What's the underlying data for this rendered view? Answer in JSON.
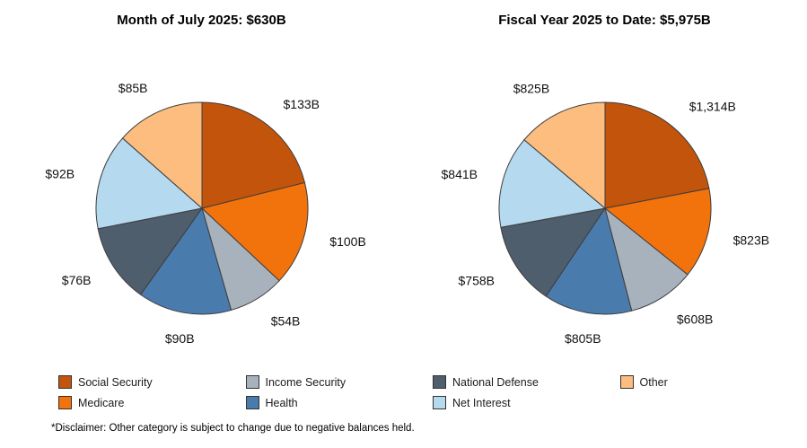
{
  "style": {
    "background": "#ffffff",
    "slice_stroke": "#3d3d3d"
  },
  "palette": {
    "social_security": "#c2540c",
    "medicare": "#f2720c",
    "income_security": "#a8b2bd",
    "health": "#4a7bad",
    "national_defense": "#4f5e6d",
    "net_interest": "#b5d9ee",
    "other": "#fcbd7f"
  },
  "chart_data": [
    {
      "type": "pie",
      "title": "Month of July 2025: $630B",
      "total_label": "$630B",
      "categories": [
        "Social Security",
        "Medicare",
        "Income Security",
        "Health",
        "National Defense",
        "Net Interest",
        "Other"
      ],
      "values": [
        133,
        100,
        54,
        90,
        76,
        92,
        85
      ],
      "labels": [
        "$133B",
        "$100B",
        "$54B",
        "$90B",
        "$76B",
        "$92B",
        "$85B"
      ],
      "colors": [
        "#c2540c",
        "#f2720c",
        "#a8b2bd",
        "#4a7bad",
        "#4f5e6d",
        "#b5d9ee",
        "#fcbd7f"
      ],
      "start_angle_deg": 0,
      "direction": "clockwise",
      "legend_position": "bottom"
    },
    {
      "type": "pie",
      "title": "Fiscal Year 2025 to Date: $5,975B",
      "total_label": "$5,975B",
      "categories": [
        "Social Security",
        "Medicare",
        "Income Security",
        "Health",
        "National Defense",
        "Net Interest",
        "Other"
      ],
      "values": [
        1314,
        823,
        608,
        805,
        758,
        841,
        825
      ],
      "labels": [
        "$1,314B",
        "$823B",
        "$608B",
        "$805B",
        "$758B",
        "$841B",
        "$825B"
      ],
      "colors": [
        "#c2540c",
        "#f2720c",
        "#a8b2bd",
        "#4a7bad",
        "#4f5e6d",
        "#b5d9ee",
        "#fcbd7f"
      ],
      "start_angle_deg": 0,
      "direction": "clockwise",
      "legend_position": "bottom"
    }
  ],
  "legend": {
    "items": [
      {
        "label": "Social Security",
        "color": "#c2540c"
      },
      {
        "label": "Medicare",
        "color": "#f2720c"
      },
      {
        "label": "Income Security",
        "color": "#a8b2bd"
      },
      {
        "label": "Health",
        "color": "#4a7bad"
      },
      {
        "label": "National Defense",
        "color": "#4f5e6d"
      },
      {
        "label": "Net Interest",
        "color": "#b5d9ee"
      },
      {
        "label": "Other",
        "color": "#fcbd7f"
      }
    ],
    "columns": [
      [
        0,
        1
      ],
      [
        2,
        3
      ],
      [
        4,
        5
      ],
      [
        6
      ]
    ]
  },
  "disclaimer": "*Disclaimer: Other category is subject to change due to negative balances held."
}
